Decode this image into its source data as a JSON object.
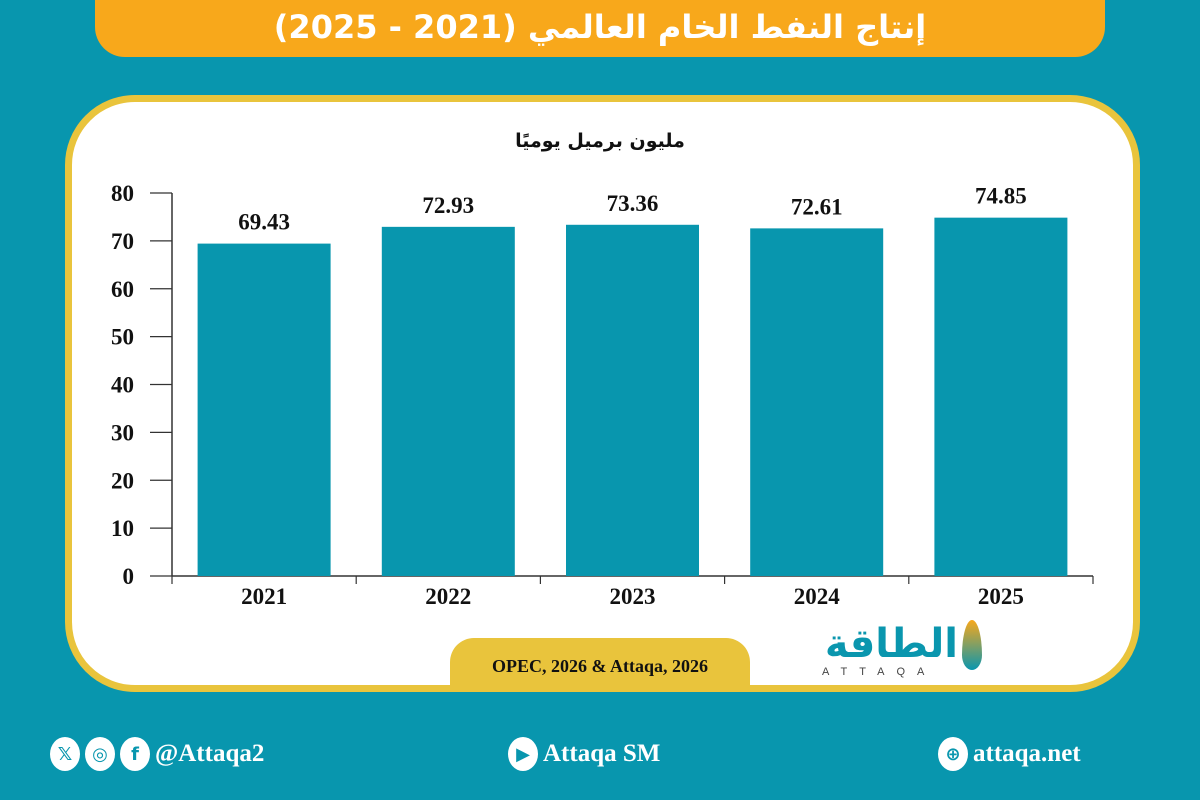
{
  "title": "إنتاج النفط الخام العالمي (2021 - 2025)",
  "source": "OPEC, 2026 & Attaqa, 2026",
  "logo": {
    "arabic": "الطاقة",
    "latin": "ATTAQA"
  },
  "footer": {
    "social_handle": "@Attaqa2",
    "youtube": "Attaqa SM",
    "website": "attaqa.net",
    "icons": [
      "x-icon",
      "instagram-icon",
      "facebook-icon",
      "youtube-icon",
      "globe-icon"
    ]
  },
  "colors": {
    "background": "#0896ae",
    "bar": "#0896ae",
    "title_bar": "#f8a81b",
    "border": "#e9c43c"
  },
  "chart_data": {
    "type": "bar",
    "ylabel": "مليون برميل يوميًا",
    "categories": [
      "2021",
      "2022",
      "2023",
      "2024",
      "2025"
    ],
    "values": [
      69.43,
      72.93,
      73.36,
      72.61,
      74.85
    ],
    "value_labels": [
      "69.43",
      "72.93",
      "73.36",
      "72.61",
      "74.85"
    ],
    "ylim": [
      0,
      80
    ],
    "yticks": [
      0,
      10,
      20,
      30,
      40,
      50,
      60,
      70,
      80
    ],
    "grid": false
  }
}
